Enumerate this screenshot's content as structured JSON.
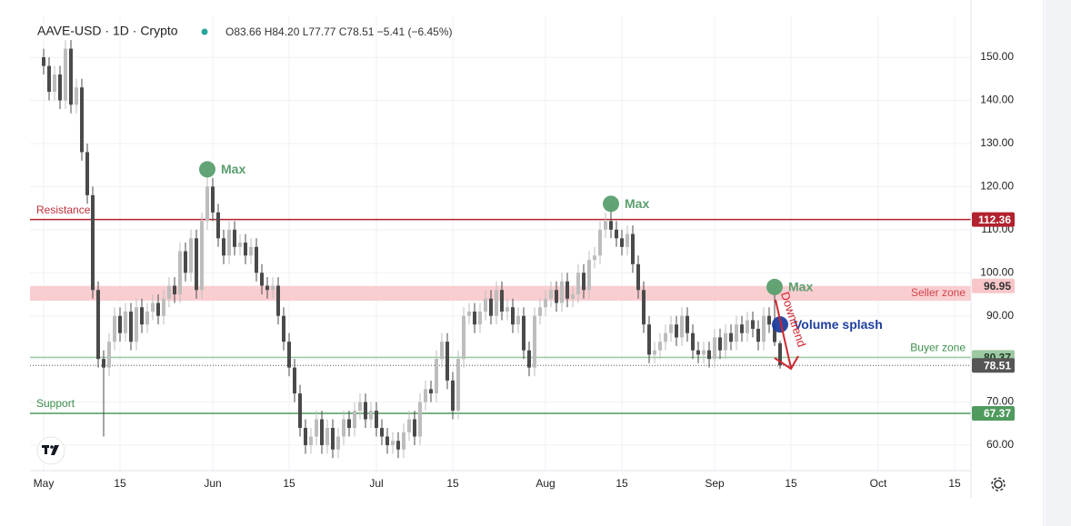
{
  "chart_data": {
    "type": "candlestick",
    "ticker": "AAVE-USD · 1D · Crypto",
    "ohlc_text": "O83.66 H84.20 L77.77 C78.51 −5.41 (−6.45%)",
    "up_color": "#bdbdbd",
    "down_color": "#4a4a4a",
    "grid": true,
    "xlim": [
      -2.5,
      170
    ],
    "xticks": [
      {
        "value": 0,
        "label": "May"
      },
      {
        "value": 14,
        "label": "15"
      },
      {
        "value": 31,
        "label": "Jun"
      },
      {
        "value": 45,
        "label": "15"
      },
      {
        "value": 61,
        "label": "Jul"
      },
      {
        "value": 75,
        "label": "15"
      },
      {
        "value": 92,
        "label": "Aug"
      },
      {
        "value": 106,
        "label": "15"
      },
      {
        "value": 123,
        "label": "Sep"
      },
      {
        "value": 137,
        "label": "15"
      },
      {
        "value": 153,
        "label": "Oct"
      },
      {
        "value": 167,
        "label": "15"
      }
    ],
    "ylim": [
      54.1,
      159.5
    ],
    "yticks": [
      {
        "value": 60,
        "label": "60.00"
      },
      {
        "value": 70,
        "label": "70.00"
      },
      {
        "value": 80,
        "label": "80.00"
      },
      {
        "value": 90,
        "label": "90.00"
      },
      {
        "value": 100,
        "label": "100.00"
      },
      {
        "value": 110,
        "label": "110.00"
      },
      {
        "value": 120,
        "label": "120.00"
      },
      {
        "value": 130,
        "label": "130.00"
      },
      {
        "value": 140,
        "label": "140.00"
      },
      {
        "value": 150,
        "label": "150.00"
      }
    ],
    "x": [
      0,
      1,
      2,
      3,
      4,
      5,
      6,
      7,
      8,
      9,
      10,
      11,
      12,
      13,
      14,
      15,
      16,
      17,
      18,
      19,
      20,
      21,
      22,
      23,
      24,
      25,
      26,
      27,
      28,
      29,
      30,
      31,
      32,
      33,
      34,
      35,
      36,
      37,
      38,
      39,
      40,
      41,
      42,
      43,
      44,
      45,
      46,
      47,
      48,
      49,
      50,
      51,
      52,
      53,
      54,
      55,
      56,
      57,
      58,
      59,
      60,
      61,
      62,
      63,
      64,
      65,
      66,
      67,
      68,
      69,
      70,
      71,
      72,
      73,
      74,
      75,
      76,
      77,
      78,
      79,
      80,
      81,
      82,
      83,
      84,
      85,
      86,
      87,
      88,
      89,
      90,
      91,
      92,
      93,
      94,
      95,
      96,
      97,
      98,
      99,
      100,
      101,
      102,
      103,
      104,
      105,
      106,
      107,
      108,
      109,
      110,
      111,
      112,
      113,
      114,
      115,
      116,
      117,
      118,
      119,
      120,
      121,
      122,
      123,
      124,
      125,
      126,
      127,
      128,
      129,
      130,
      131,
      132,
      133,
      134,
      135
    ],
    "open": [
      150,
      148,
      142,
      146,
      140,
      152,
      139,
      143,
      128,
      118,
      96,
      80,
      78,
      84,
      90,
      86,
      91,
      84,
      92,
      88,
      91,
      93,
      90,
      94,
      97,
      95,
      105,
      100,
      108,
      96,
      112,
      120,
      114,
      108,
      104,
      110,
      106,
      107,
      104,
      106,
      100,
      97,
      96,
      97,
      90,
      84,
      78,
      72,
      64,
      60,
      62,
      66,
      60,
      64,
      59,
      62,
      66,
      64,
      68,
      70,
      66,
      68,
      64,
      62,
      60,
      61,
      59,
      63,
      66,
      62,
      70,
      73,
      72,
      80,
      84,
      75,
      68,
      80,
      90,
      91,
      88,
      91,
      94,
      90,
      96,
      91,
      92,
      88,
      90,
      82,
      78,
      90,
      92,
      94,
      96,
      93,
      98,
      94,
      95,
      100,
      96,
      103,
      104,
      110,
      112,
      110,
      108,
      106,
      109,
      102,
      96,
      88,
      81,
      82,
      84,
      86,
      88,
      85,
      90,
      86,
      82,
      81,
      82,
      80,
      85,
      82,
      86,
      84,
      88,
      86,
      89,
      87,
      84,
      90,
      88,
      83.66
    ],
    "high": [
      152,
      150,
      148,
      148,
      154,
      154,
      145,
      145,
      130,
      120,
      98,
      82,
      86,
      92,
      92,
      93,
      93,
      94,
      94,
      93,
      95,
      95,
      96,
      99,
      99,
      107,
      107,
      110,
      110,
      114,
      124,
      122,
      116,
      110,
      112,
      112,
      109,
      109,
      108,
      108,
      102,
      99,
      99,
      99,
      92,
      86,
      80,
      74,
      66,
      64,
      68,
      68,
      66,
      66,
      64,
      68,
      68,
      70,
      72,
      72,
      70,
      70,
      66,
      64,
      63,
      63,
      65,
      68,
      68,
      72,
      75,
      75,
      82,
      86,
      86,
      77,
      82,
      92,
      93,
      93,
      93,
      96,
      96,
      98,
      98,
      94,
      94,
      92,
      92,
      84,
      92,
      94,
      96,
      98,
      98,
      100,
      100,
      97,
      102,
      102,
      105,
      106,
      112,
      114,
      116,
      112,
      110,
      111,
      111,
      104,
      98,
      90,
      84,
      86,
      88,
      90,
      90,
      92,
      92,
      88,
      84,
      84,
      84,
      87,
      87,
      88,
      88,
      90,
      90,
      91,
      91,
      89,
      92,
      92,
      97,
      84.2
    ],
    "low": [
      146,
      140,
      140,
      138,
      138,
      137,
      137,
      126,
      116,
      94,
      78,
      62,
      76,
      82,
      84,
      84,
      82,
      82,
      86,
      86,
      89,
      88,
      88,
      92,
      93,
      93,
      98,
      98,
      94,
      94,
      110,
      112,
      106,
      102,
      102,
      104,
      104,
      102,
      102,
      98,
      95,
      94,
      94,
      88,
      82,
      76,
      70,
      62,
      58,
      58,
      60,
      58,
      58,
      57,
      57,
      60,
      62,
      62,
      66,
      64,
      64,
      62,
      60,
      58,
      58,
      57,
      57,
      61,
      60,
      60,
      68,
      70,
      70,
      78,
      73,
      66,
      66,
      78,
      88,
      86,
      86,
      89,
      88,
      88,
      89,
      89,
      86,
      86,
      80,
      76,
      76,
      88,
      90,
      92,
      91,
      91,
      92,
      92,
      93,
      94,
      94,
      101,
      102,
      108,
      108,
      106,
      104,
      104,
      100,
      94,
      86,
      79,
      79,
      80,
      82,
      84,
      83,
      83,
      84,
      80,
      79,
      79,
      78,
      78,
      80,
      80,
      82,
      82,
      84,
      84,
      85,
      82,
      82,
      86,
      83,
      77.77
    ],
    "close": [
      148,
      142,
      146,
      140,
      152,
      139,
      143,
      128,
      118,
      96,
      80,
      78,
      84,
      90,
      86,
      91,
      84,
      92,
      88,
      91,
      93,
      90,
      94,
      97,
      95,
      105,
      100,
      108,
      96,
      112,
      120,
      114,
      108,
      104,
      110,
      106,
      107,
      104,
      106,
      100,
      97,
      96,
      97,
      90,
      84,
      78,
      72,
      64,
      60,
      62,
      66,
      60,
      64,
      59,
      62,
      66,
      64,
      68,
      70,
      66,
      68,
      64,
      62,
      60,
      61,
      59,
      63,
      66,
      62,
      70,
      73,
      72,
      80,
      84,
      75,
      68,
      80,
      90,
      91,
      88,
      91,
      94,
      90,
      96,
      91,
      92,
      88,
      90,
      82,
      78,
      90,
      92,
      94,
      96,
      93,
      98,
      94,
      95,
      100,
      96,
      103,
      104,
      110,
      112,
      110,
      108,
      106,
      109,
      102,
      96,
      88,
      81,
      82,
      84,
      86,
      88,
      85,
      90,
      86,
      82,
      81,
      82,
      80,
      85,
      82,
      86,
      84,
      88,
      86,
      89,
      87,
      84,
      90,
      88,
      83.92,
      78.51
    ],
    "levels": [
      {
        "name": "Resistance",
        "value": 112.36,
        "color": "#b2222e",
        "text_color": "#c0303a",
        "badge_text": "#ffffff",
        "side": "left"
      },
      {
        "name": "Seller zone",
        "value": 96.95,
        "band_low": 93.5,
        "color": "#f8c6c9",
        "text_color": "#d0434c",
        "badge_text": "#333333",
        "side": "right"
      },
      {
        "name": "Buyer zone",
        "value": 80.37,
        "color": "#9dc9a3",
        "text_color": "#3d8f4c",
        "badge_text": "#1f3a24",
        "side": "right"
      },
      {
        "value": 78.51,
        "color": "#555555",
        "text_color": "#555555",
        "badge_text": "#ffffff",
        "dotted": true
      },
      {
        "name": "Support",
        "value": 67.37,
        "color": "#4f9a5d",
        "text_color": "#3d8f4c",
        "badge_text": "#ffffff",
        "side": "left"
      }
    ],
    "markers": [
      {
        "label": "Max",
        "x": 30,
        "y": 124,
        "color": "#5a9f6e"
      },
      {
        "label": "Max",
        "x": 104,
        "y": 116,
        "color": "#5a9f6e"
      },
      {
        "label": "Max",
        "x": 134,
        "y": 96.7,
        "color": "#5a9f6e"
      },
      {
        "label": "Volume splash",
        "x": 135,
        "y": 88,
        "color": "#1f3f9e"
      }
    ],
    "trend_label": "Downtrend"
  }
}
